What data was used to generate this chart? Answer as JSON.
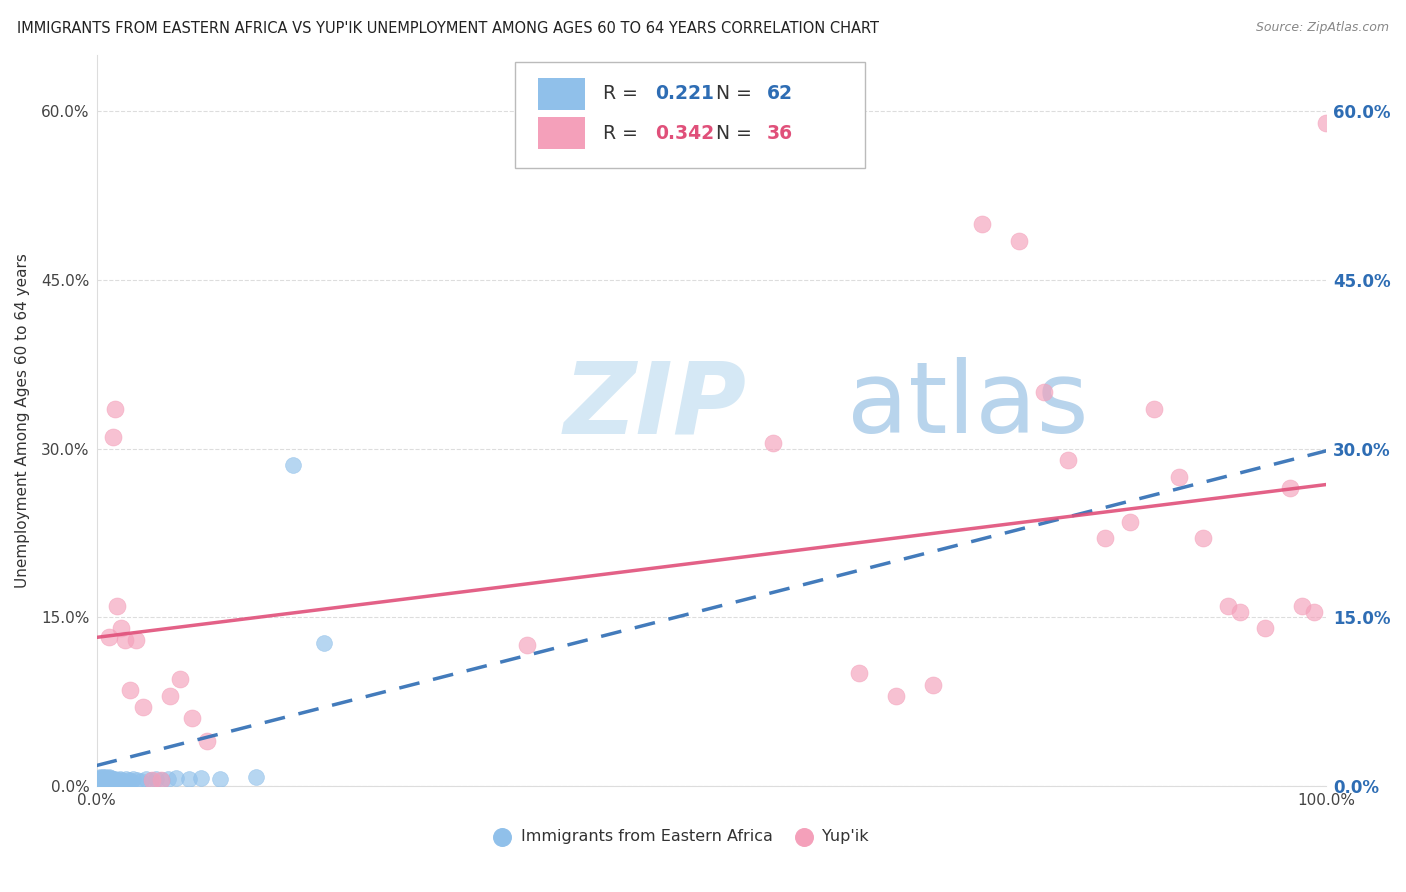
{
  "title": "IMMIGRANTS FROM EASTERN AFRICA VS YUP'IK UNEMPLOYMENT AMONG AGES 60 TO 64 YEARS CORRELATION CHART",
  "source": "Source: ZipAtlas.com",
  "ylabel": "Unemployment Among Ages 60 to 64 years",
  "ylim": [
    0.0,
    0.65
  ],
  "xlim": [
    0.0,
    1.0
  ],
  "yticks": [
    0.0,
    0.15,
    0.3,
    0.45,
    0.6
  ],
  "ytick_labels": [
    "0.0%",
    "15.0%",
    "30.0%",
    "45.0%",
    "60.0%"
  ],
  "xticks": [
    0.0,
    1.0
  ],
  "xtick_labels": [
    "0.0%",
    "100.0%"
  ],
  "blue_R": "0.221",
  "blue_N": "62",
  "pink_R": "0.342",
  "pink_N": "36",
  "blue_dot_color": "#90C0EA",
  "pink_dot_color": "#F4A0BA",
  "blue_line_color": "#2E6DB4",
  "pink_line_color": "#E0507A",
  "grid_color": "#DDDDDD",
  "bg_color": "#FFFFFF",
  "watermark_zip_color": "#C8DFF0",
  "watermark_atlas_color": "#A8C8E8",
  "legend_label_blue": "Immigrants from Eastern Africa",
  "legend_label_pink": "Yup'ik",
  "blue_line_x0": 0.0,
  "blue_line_y0": 0.018,
  "blue_line_x1": 1.0,
  "blue_line_y1": 0.298,
  "pink_line_x0": 0.0,
  "pink_line_y0": 0.132,
  "pink_line_x1": 1.0,
  "pink_line_y1": 0.268,
  "blue_x": [
    0.001,
    0.001,
    0.002,
    0.002,
    0.002,
    0.003,
    0.003,
    0.003,
    0.004,
    0.004,
    0.004,
    0.005,
    0.005,
    0.005,
    0.006,
    0.006,
    0.006,
    0.007,
    0.007,
    0.007,
    0.008,
    0.008,
    0.008,
    0.009,
    0.009,
    0.009,
    0.01,
    0.01,
    0.01,
    0.011,
    0.011,
    0.012,
    0.012,
    0.013,
    0.013,
    0.014,
    0.015,
    0.015,
    0.016,
    0.017,
    0.018,
    0.019,
    0.02,
    0.022,
    0.024,
    0.026,
    0.028,
    0.03,
    0.033,
    0.036,
    0.04,
    0.044,
    0.048,
    0.053,
    0.058,
    0.065,
    0.075,
    0.085,
    0.1,
    0.13,
    0.16,
    0.185
  ],
  "blue_y": [
    0.004,
    0.006,
    0.003,
    0.005,
    0.007,
    0.003,
    0.006,
    0.008,
    0.003,
    0.005,
    0.007,
    0.003,
    0.005,
    0.008,
    0.003,
    0.005,
    0.007,
    0.003,
    0.005,
    0.008,
    0.003,
    0.005,
    0.007,
    0.003,
    0.005,
    0.007,
    0.003,
    0.005,
    0.008,
    0.003,
    0.006,
    0.004,
    0.007,
    0.003,
    0.006,
    0.004,
    0.003,
    0.006,
    0.004,
    0.005,
    0.004,
    0.006,
    0.005,
    0.004,
    0.006,
    0.005,
    0.004,
    0.006,
    0.005,
    0.004,
    0.006,
    0.005,
    0.006,
    0.005,
    0.006,
    0.007,
    0.006,
    0.007,
    0.006,
    0.008,
    0.285,
    0.127
  ],
  "pink_x": [
    0.01,
    0.013,
    0.015,
    0.017,
    0.02,
    0.023,
    0.027,
    0.032,
    0.038,
    0.045,
    0.052,
    0.06,
    0.068,
    0.078,
    0.09,
    0.35,
    0.55,
    0.62,
    0.65,
    0.68,
    0.72,
    0.75,
    0.77,
    0.79,
    0.82,
    0.84,
    0.86,
    0.88,
    0.9,
    0.92,
    0.93,
    0.95,
    0.97,
    0.98,
    0.99,
    1.0
  ],
  "pink_y": [
    0.132,
    0.31,
    0.335,
    0.16,
    0.14,
    0.13,
    0.085,
    0.13,
    0.07,
    0.005,
    0.005,
    0.08,
    0.095,
    0.06,
    0.04,
    0.125,
    0.305,
    0.1,
    0.08,
    0.09,
    0.5,
    0.485,
    0.35,
    0.29,
    0.22,
    0.235,
    0.335,
    0.275,
    0.22,
    0.16,
    0.155,
    0.14,
    0.265,
    0.16,
    0.155,
    0.59
  ]
}
